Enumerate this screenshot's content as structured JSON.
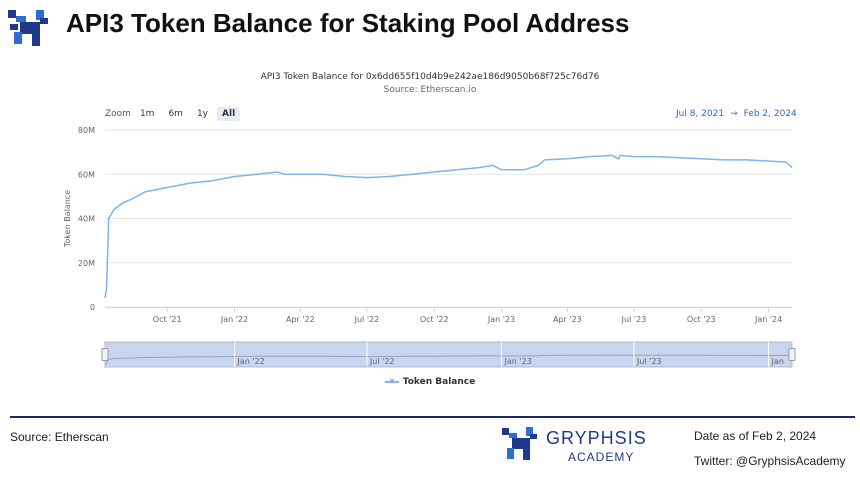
{
  "header": {
    "title": "API3 Token Balance for Staking Pool Address"
  },
  "chart_header": {
    "title": "API3 Token Balance for 0x6dd655f10d4b9e242ae186d9050b68f725c76d76",
    "subtitle": "Source: Etherscan.io"
  },
  "zoom": {
    "label": "Zoom",
    "options": [
      "1m",
      "6m",
      "1y",
      "All"
    ],
    "active": "All"
  },
  "range": {
    "from": "Jul 8, 2021",
    "arrow": "→",
    "to": "Feb 2, 2024"
  },
  "legend": {
    "label": "Token Balance"
  },
  "colors": {
    "line": "#7cb5ec",
    "navigator_fill": "#c9d4ee",
    "brand": "#1f3a8a"
  },
  "chart_data": {
    "type": "line",
    "ylabel": "Token Balance",
    "ylim": [
      0,
      80
    ],
    "y_ticks": [
      0,
      20,
      40,
      60,
      80
    ],
    "y_tick_labels": [
      "0",
      "20M",
      "40M",
      "60M",
      "80M"
    ],
    "x_range": [
      "2021-07-08",
      "2024-02-02"
    ],
    "x_ticks": [
      "2021-10-01",
      "2022-01-01",
      "2022-04-01",
      "2022-07-01",
      "2022-10-01",
      "2023-01-01",
      "2023-04-01",
      "2023-07-01",
      "2023-10-01",
      "2024-01-01"
    ],
    "x_tick_labels": [
      "Oct '21",
      "Jan '22",
      "Apr '22",
      "Jul '22",
      "Oct '22",
      "Jan '23",
      "Apr '23",
      "Jul '23",
      "Oct '23",
      "Jan '24"
    ],
    "navigator_ticks": [
      "2022-01-01",
      "2022-07-01",
      "2023-01-01",
      "2023-07-01",
      "2024-01-01"
    ],
    "navigator_tick_labels": [
      "Jan '22",
      "Jul '22",
      "Jan '23",
      "Jul '23",
      "Jan"
    ],
    "series": [
      {
        "name": "Token Balance",
        "points": [
          [
            "2021-07-08",
            4
          ],
          [
            "2021-07-10",
            8
          ],
          [
            "2021-07-13",
            40
          ],
          [
            "2021-07-20",
            44
          ],
          [
            "2021-08-01",
            47
          ],
          [
            "2021-08-15",
            49
          ],
          [
            "2021-09-01",
            52
          ],
          [
            "2021-10-01",
            54
          ],
          [
            "2021-11-01",
            56
          ],
          [
            "2021-12-01",
            57
          ],
          [
            "2022-01-01",
            59
          ],
          [
            "2022-02-01",
            60
          ],
          [
            "2022-03-01",
            61
          ],
          [
            "2022-03-10",
            60
          ],
          [
            "2022-04-01",
            60
          ],
          [
            "2022-05-01",
            60
          ],
          [
            "2022-06-01",
            59
          ],
          [
            "2022-07-01",
            58.5
          ],
          [
            "2022-08-01",
            59
          ],
          [
            "2022-09-01",
            60
          ],
          [
            "2022-10-01",
            61
          ],
          [
            "2022-11-01",
            62
          ],
          [
            "2022-12-01",
            63
          ],
          [
            "2022-12-20",
            64
          ],
          [
            "2023-01-01",
            62
          ],
          [
            "2023-02-01",
            62
          ],
          [
            "2023-02-20",
            64
          ],
          [
            "2023-03-01",
            66.5
          ],
          [
            "2023-04-01",
            67
          ],
          [
            "2023-05-01",
            68
          ],
          [
            "2023-06-01",
            68.5
          ],
          [
            "2023-06-10",
            67
          ],
          [
            "2023-06-12",
            68.5
          ],
          [
            "2023-07-01",
            68
          ],
          [
            "2023-08-01",
            68
          ],
          [
            "2023-09-01",
            67.5
          ],
          [
            "2023-10-01",
            67
          ],
          [
            "2023-11-01",
            66.5
          ],
          [
            "2023-12-01",
            66.5
          ],
          [
            "2024-01-01",
            66
          ],
          [
            "2024-01-25",
            65.5
          ],
          [
            "2024-02-02",
            63
          ]
        ]
      }
    ]
  },
  "footer": {
    "source": "Source: Etherscan",
    "brand_name": "GRYPHSIS",
    "brand_sub": "ACADEMY",
    "date": "Date as of Feb 2, 2024",
    "twitter": "Twitter: @GryphsisAcademy"
  }
}
